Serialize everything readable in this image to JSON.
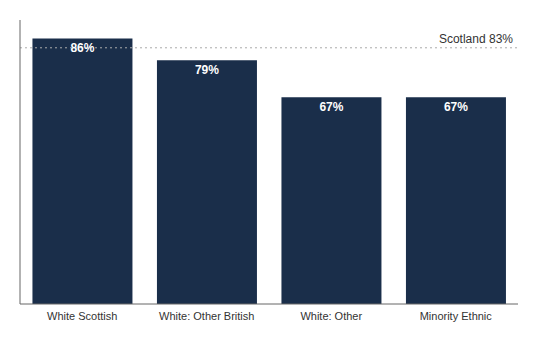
{
  "chart_data": {
    "type": "bar",
    "categories": [
      "White Scottish",
      "White: Other British",
      "White: Other",
      "Minority Ethnic"
    ],
    "values": [
      86,
      79,
      67,
      67
    ],
    "value_labels": [
      "86%",
      "79%",
      "67%",
      "67%"
    ],
    "data_labels": true,
    "color": "#1a2e4a",
    "ylim": [
      0,
      92
    ],
    "tick_labels": "x",
    "grid": false,
    "annotations": [
      {
        "text": "Scotland 83%",
        "y": 83,
        "color": "#aaaaaa"
      }
    ]
  }
}
